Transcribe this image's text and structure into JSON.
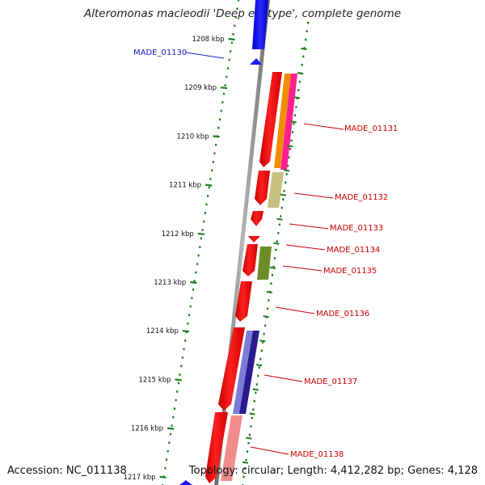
{
  "diagram": {
    "title": "Alteromonas macleodii 'Deep ecotype', complete genome",
    "accession": "Accession: NC_011138",
    "topology": "Topology: circular; Length: 4,412,282 bp; Genes: 4,128",
    "kbp_labels": [
      "1208 kbp",
      "1209 kbp",
      "1210 kbp",
      "1211 kbp",
      "1212 kbp",
      "1213 kbp",
      "1214 kbp",
      "1215 kbp",
      "1216 kbp",
      "1217 kbp"
    ],
    "genes": [
      {
        "name": "MADE_01130",
        "color": "#1a1acc"
      },
      {
        "name": "MADE_01131",
        "color": "#cc0000"
      },
      {
        "name": "MADE_01132",
        "color": "#cc0000"
      },
      {
        "name": "MADE_01133",
        "color": "#cc0000"
      },
      {
        "name": "MADE_01134",
        "color": "#cc0000"
      },
      {
        "name": "MADE_01135",
        "color": "#cc0000"
      },
      {
        "name": "MADE_01136",
        "color": "#cc0000"
      },
      {
        "name": "MADE_01137",
        "color": "#cc0000"
      },
      {
        "name": "MADE_01138",
        "color": "#cc0000"
      }
    ],
    "colors": {
      "cds": "#ff1a1a",
      "cds_dark": "#b80000",
      "reverse_gene": "#1a1aff",
      "backbone": "#8c8c8c",
      "tick": "#1e7d1e",
      "orange": "#f08c00",
      "magenta": "#ff1f8f",
      "khaki": "#c8c080",
      "olive": "#6f8c2a",
      "navy": "#2a1a8c",
      "periwinkle": "#7b7bd8",
      "pink": "#f08c8c"
    }
  }
}
